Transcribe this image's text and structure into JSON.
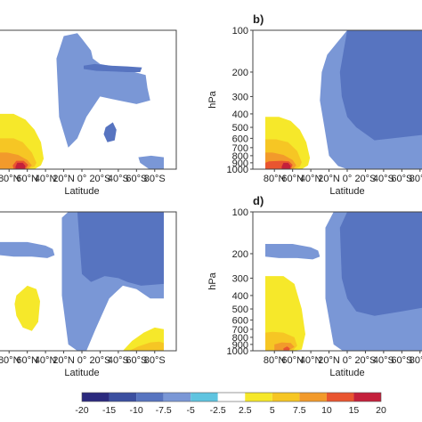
{
  "chart_data": {
    "type": "heatmap",
    "colorbar": {
      "boundaries": [
        -20,
        -15,
        -10,
        -7.5,
        -5,
        -2.5,
        2.5,
        5,
        7.5,
        10,
        15,
        20
      ],
      "labels": [
        "-20",
        "-15",
        "-10",
        "-7.5",
        "-5",
        "-2.5",
        "2.5",
        "5",
        "7.5",
        "10",
        "15",
        "20"
      ],
      "colors": [
        "#2b2a7e",
        "#3b4fa0",
        "#5774c0",
        "#7a97d6",
        "#5fc4e0",
        "#ffffff",
        "#f6e82a",
        "#f6c624",
        "#f29a2b",
        "#e95530",
        "#c4203b"
      ]
    },
    "x": {
      "label": "Latitude",
      "ticks": [
        "80°N",
        "60°N",
        "40°N",
        "20°N",
        "0°",
        "20°S",
        "40°S",
        "60°S",
        "80°S"
      ],
      "range": [
        90,
        -90
      ]
    },
    "y": {
      "label": "hPa",
      "scale": "log",
      "range": [
        1000,
        100
      ],
      "ticks": [
        "100",
        "200",
        "300",
        "400",
        "500",
        "600",
        "700",
        "800",
        "900",
        "1000"
      ]
    },
    "panels": [
      {
        "id": "a",
        "label": ""
      },
      {
        "id": "b",
        "label": "b)"
      },
      {
        "id": "c",
        "label": ""
      },
      {
        "id": "d",
        "label": "d)"
      }
    ],
    "layers": [
      {
        "panel": "a",
        "level": 2.5,
        "color": "#f6e82a",
        "lat": [
          90,
          75,
          65,
          52,
          45,
          42,
          45,
          52,
          62,
          75,
          90
        ],
        "p": [
          1000,
          1000,
          1000,
          1000,
          940,
          840,
          640,
          520,
          440,
          400,
          400
        ]
      },
      {
        "panel": "a",
        "level": 5,
        "color": "#f6c624",
        "lat": [
          90,
          70,
          60,
          52,
          50,
          55,
          65,
          75,
          90
        ],
        "p": [
          1000,
          1000,
          1000,
          960,
          900,
          760,
          640,
          600,
          600
        ]
      },
      {
        "panel": "a",
        "level": 7.5,
        "color": "#f29a2b",
        "lat": [
          90,
          72,
          60,
          55,
          60,
          70,
          82,
          90
        ],
        "p": [
          1000,
          1000,
          1000,
          940,
          860,
          790,
          760,
          760
        ]
      },
      {
        "panel": "a",
        "level": 10,
        "color": "#e95530",
        "lat": [
          75,
          62,
          59,
          64,
          72,
          76
        ],
        "p": [
          1000,
          1000,
          930,
          870,
          870,
          940
        ]
      },
      {
        "panel": "a",
        "level": 15,
        "color": "#c4203b",
        "lat": [
          73,
          63,
          62,
          65,
          71,
          73
        ],
        "p": [
          1000,
          1000,
          950,
          900,
          900,
          960
        ]
      },
      {
        "panel": "a",
        "level": -5,
        "color": "#7a97d6",
        "lat": [
          28,
          20,
          5,
          0,
          -10,
          -12,
          -20,
          -30,
          -45,
          -58,
          -70,
          -72,
          -75,
          -60,
          -40,
          -20,
          -5,
          5,
          15,
          25
        ],
        "p": [
          160,
          110,
          105,
          115,
          140,
          160,
          175,
          180,
          190,
          200,
          210,
          260,
          320,
          340,
          320,
          300,
          420,
          600,
          700,
          420
        ]
      },
      {
        "panel": "a",
        "level": -7.5,
        "color": "#5774c0",
        "lat": [
          -2,
          -14,
          -32,
          -50,
          -66,
          -64,
          -50,
          -34,
          -16,
          -2
        ],
        "p": [
          180,
          175,
          180,
          182,
          185,
          200,
          200,
          198,
          196,
          190
        ]
      },
      {
        "panel": "a",
        "level": -7.5,
        "color": "#5774c0",
        "lat": [
          -26,
          -34,
          -38,
          -36,
          -28,
          -24
        ],
        "p": [
          500,
          460,
          520,
          620,
          640,
          560
        ]
      },
      {
        "panel": "a",
        "level": -5,
        "color": "#7a97d6",
        "lat": [
          -62,
          -76,
          -90,
          -90,
          -74,
          -64
        ],
        "p": [
          820,
          800,
          820,
          1000,
          1000,
          900
        ]
      },
      {
        "panel": "b",
        "level": -5,
        "color": "#7a97d6",
        "lat": [
          28,
          22,
          10,
          0,
          -20,
          -40,
          -60,
          -80,
          -90,
          -90,
          -40,
          -20,
          0,
          10,
          20,
          25,
          30
        ],
        "p": [
          200,
          150,
          120,
          100,
          100,
          100,
          100,
          100,
          100,
          1000,
          1000,
          1000,
          1000,
          950,
          800,
          500,
          320
        ]
      },
      {
        "panel": "b",
        "level": -7.5,
        "color": "#5774c0",
        "lat": [
          8,
          0,
          -20,
          -40,
          -60,
          -90,
          -90,
          -30,
          -10,
          0,
          6
        ],
        "p": [
          200,
          100,
          100,
          100,
          100,
          100,
          560,
          620,
          500,
          420,
          300
        ]
      },
      {
        "panel": "b",
        "level": 2.5,
        "color": "#f6e82a",
        "lat": [
          90,
          75,
          62,
          50,
          43,
          41,
          45,
          52,
          62,
          75,
          90
        ],
        "p": [
          1000,
          1000,
          1000,
          1000,
          940,
          830,
          640,
          520,
          450,
          420,
          420
        ]
      },
      {
        "panel": "b",
        "level": 5,
        "color": "#f6c624",
        "lat": [
          90,
          70,
          58,
          52,
          50,
          55,
          65,
          78,
          90
        ],
        "p": [
          1000,
          1000,
          1000,
          960,
          890,
          740,
          640,
          610,
          610
        ]
      },
      {
        "panel": "b",
        "level": 7.5,
        "color": "#f29a2b",
        "lat": [
          90,
          72,
          60,
          56,
          60,
          70,
          82,
          90
        ],
        "p": [
          1000,
          1000,
          1000,
          940,
          860,
          790,
          760,
          760
        ]
      },
      {
        "panel": "b",
        "level": 10,
        "color": "#e95530",
        "lat": [
          90,
          75,
          62,
          60,
          64,
          72,
          86,
          90
        ],
        "p": [
          1000,
          1000,
          1000,
          930,
          880,
          870,
          880,
          900
        ]
      },
      {
        "panel": "b",
        "level": 15,
        "color": "#c4203b",
        "lat": [
          72,
          63,
          62,
          65,
          70,
          72
        ],
        "p": [
          1000,
          1000,
          950,
          900,
          900,
          960
        ]
      },
      {
        "panel": "c",
        "level": -5,
        "color": "#7a97d6",
        "lat": [
          22,
          15,
          5,
          -5,
          -25,
          -45,
          -65,
          -90,
          -90,
          -75,
          -60,
          -45,
          -30,
          -15,
          -5,
          5,
          15,
          22
        ],
        "p": [
          110,
          100,
          100,
          100,
          100,
          100,
          100,
          100,
          420,
          420,
          360,
          340,
          420,
          700,
          1000,
          1000,
          900,
          400
        ]
      },
      {
        "panel": "c",
        "level": -7.5,
        "color": "#5774c0",
        "lat": [
          5,
          0,
          -20,
          -40,
          -60,
          -90,
          -90,
          -65,
          -50,
          -40,
          -25,
          -10,
          0
        ],
        "p": [
          100,
          100,
          100,
          100,
          100,
          100,
          330,
          340,
          320,
          300,
          290,
          320,
          280
        ]
      },
      {
        "panel": "c",
        "level": -5,
        "color": "#7a97d6",
        "lat": [
          90,
          60,
          40,
          32,
          30,
          38,
          55,
          75,
          90
        ],
        "p": [
          165,
          165,
          175,
          185,
          205,
          215,
          210,
          210,
          205
        ]
      },
      {
        "panel": "c",
        "level": 2.5,
        "color": "#f6e82a",
        "lat": [
          72,
          60,
          50,
          46,
          48,
          55,
          65,
          72,
          74
        ],
        "p": [
          400,
          340,
          360,
          440,
          620,
          720,
          680,
          560,
          460
        ]
      },
      {
        "panel": "c",
        "level": 2.5,
        "color": "#f6e82a",
        "lat": [
          -45,
          -55,
          -68,
          -80,
          -90,
          -90,
          -45
        ],
        "p": [
          1000,
          850,
          740,
          680,
          700,
          1000,
          1000
        ]
      },
      {
        "panel": "c",
        "level": 5,
        "color": "#f6c624",
        "lat": [
          -52,
          -62,
          -75,
          -85,
          -90,
          -90,
          -52
        ],
        "p": [
          1000,
          930,
          870,
          860,
          880,
          1000,
          1000
        ]
      },
      {
        "panel": "d",
        "level": -5,
        "color": "#7a97d6",
        "lat": [
          24,
          15,
          5,
          -5,
          -25,
          -45,
          -65,
          -90,
          -90,
          -30,
          -5,
          5,
          15,
          24
        ],
        "p": [
          130,
          100,
          100,
          100,
          100,
          100,
          100,
          100,
          1000,
          1000,
          1000,
          1000,
          900,
          420
        ]
      },
      {
        "panel": "d",
        "level": -7.5,
        "color": "#5774c0",
        "lat": [
          8,
          0,
          -20,
          -40,
          -60,
          -90,
          -90,
          -60,
          -30,
          -10,
          0,
          6
        ],
        "p": [
          130,
          100,
          100,
          100,
          100,
          100,
          480,
          520,
          560,
          520,
          420,
          300
        ]
      },
      {
        "panel": "d",
        "level": -5,
        "color": "#7a97d6",
        "lat": [
          90,
          60,
          40,
          32,
          30,
          38,
          55,
          75,
          90
        ],
        "p": [
          170,
          170,
          180,
          190,
          210,
          220,
          215,
          215,
          210
        ]
      },
      {
        "panel": "d",
        "level": 2.5,
        "color": "#f6e82a",
        "lat": [
          90,
          75,
          60,
          50,
          46,
          50,
          58,
          70,
          90
        ],
        "p": [
          1000,
          1000,
          1000,
          980,
          760,
          500,
          330,
          290,
          290
        ]
      },
      {
        "panel": "d",
        "level": 5,
        "color": "#f6c624",
        "lat": [
          90,
          72,
          60,
          55,
          58,
          70,
          82,
          90
        ],
        "p": [
          1000,
          1000,
          1000,
          920,
          800,
          740,
          730,
          740
        ]
      },
      {
        "panel": "d",
        "level": 7.5,
        "color": "#f29a2b",
        "lat": [
          80,
          65,
          58,
          62,
          72,
          80
        ],
        "p": [
          1000,
          1000,
          940,
          880,
          870,
          900
        ]
      },
      {
        "panel": "d",
        "level": 10,
        "color": "#e95530",
        "lat": [
          70,
          64,
          63,
          66,
          70
        ],
        "p": [
          1000,
          1000,
          960,
          930,
          960
        ]
      }
    ]
  }
}
